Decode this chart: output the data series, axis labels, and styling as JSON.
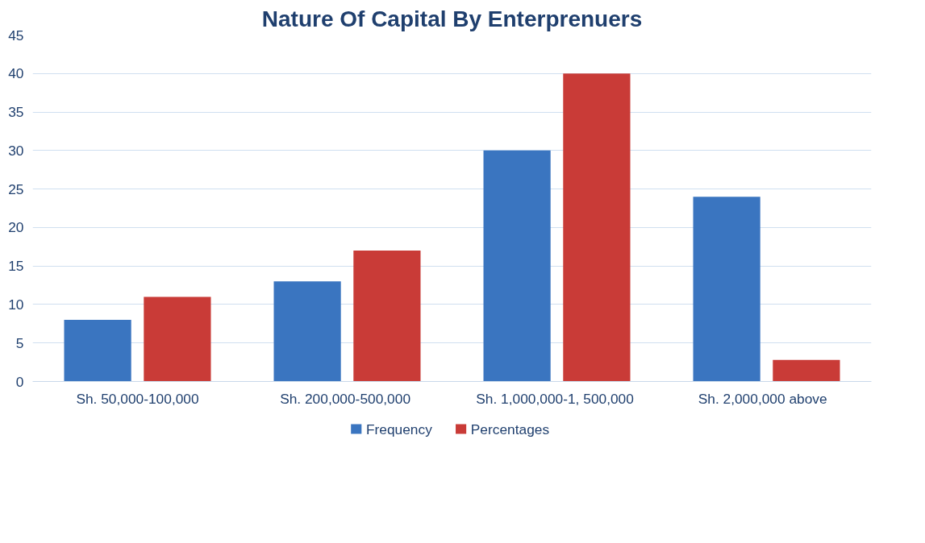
{
  "chart_data": {
    "type": "bar",
    "title": "Nature Of Capital By Enterprenuers",
    "categories": [
      "Sh. 50,000-100,000",
      "Sh.  200,000-500,000",
      "Sh.  1,000,000-1, 500,000",
      "Sh. 2,000,000   above"
    ],
    "series": [
      {
        "name": "Frequency",
        "color": "#3a75c0",
        "values": [
          8,
          13,
          30,
          24
        ]
      },
      {
        "name": "Percentages",
        "color": "#c93b37",
        "values": [
          11,
          17,
          40,
          2.8
        ]
      }
    ],
    "ylim": [
      0,
      45
    ],
    "yticks": [
      0,
      5,
      10,
      15,
      20,
      25,
      30,
      35,
      40,
      45
    ],
    "grid": "y",
    "legend": "bottom"
  }
}
